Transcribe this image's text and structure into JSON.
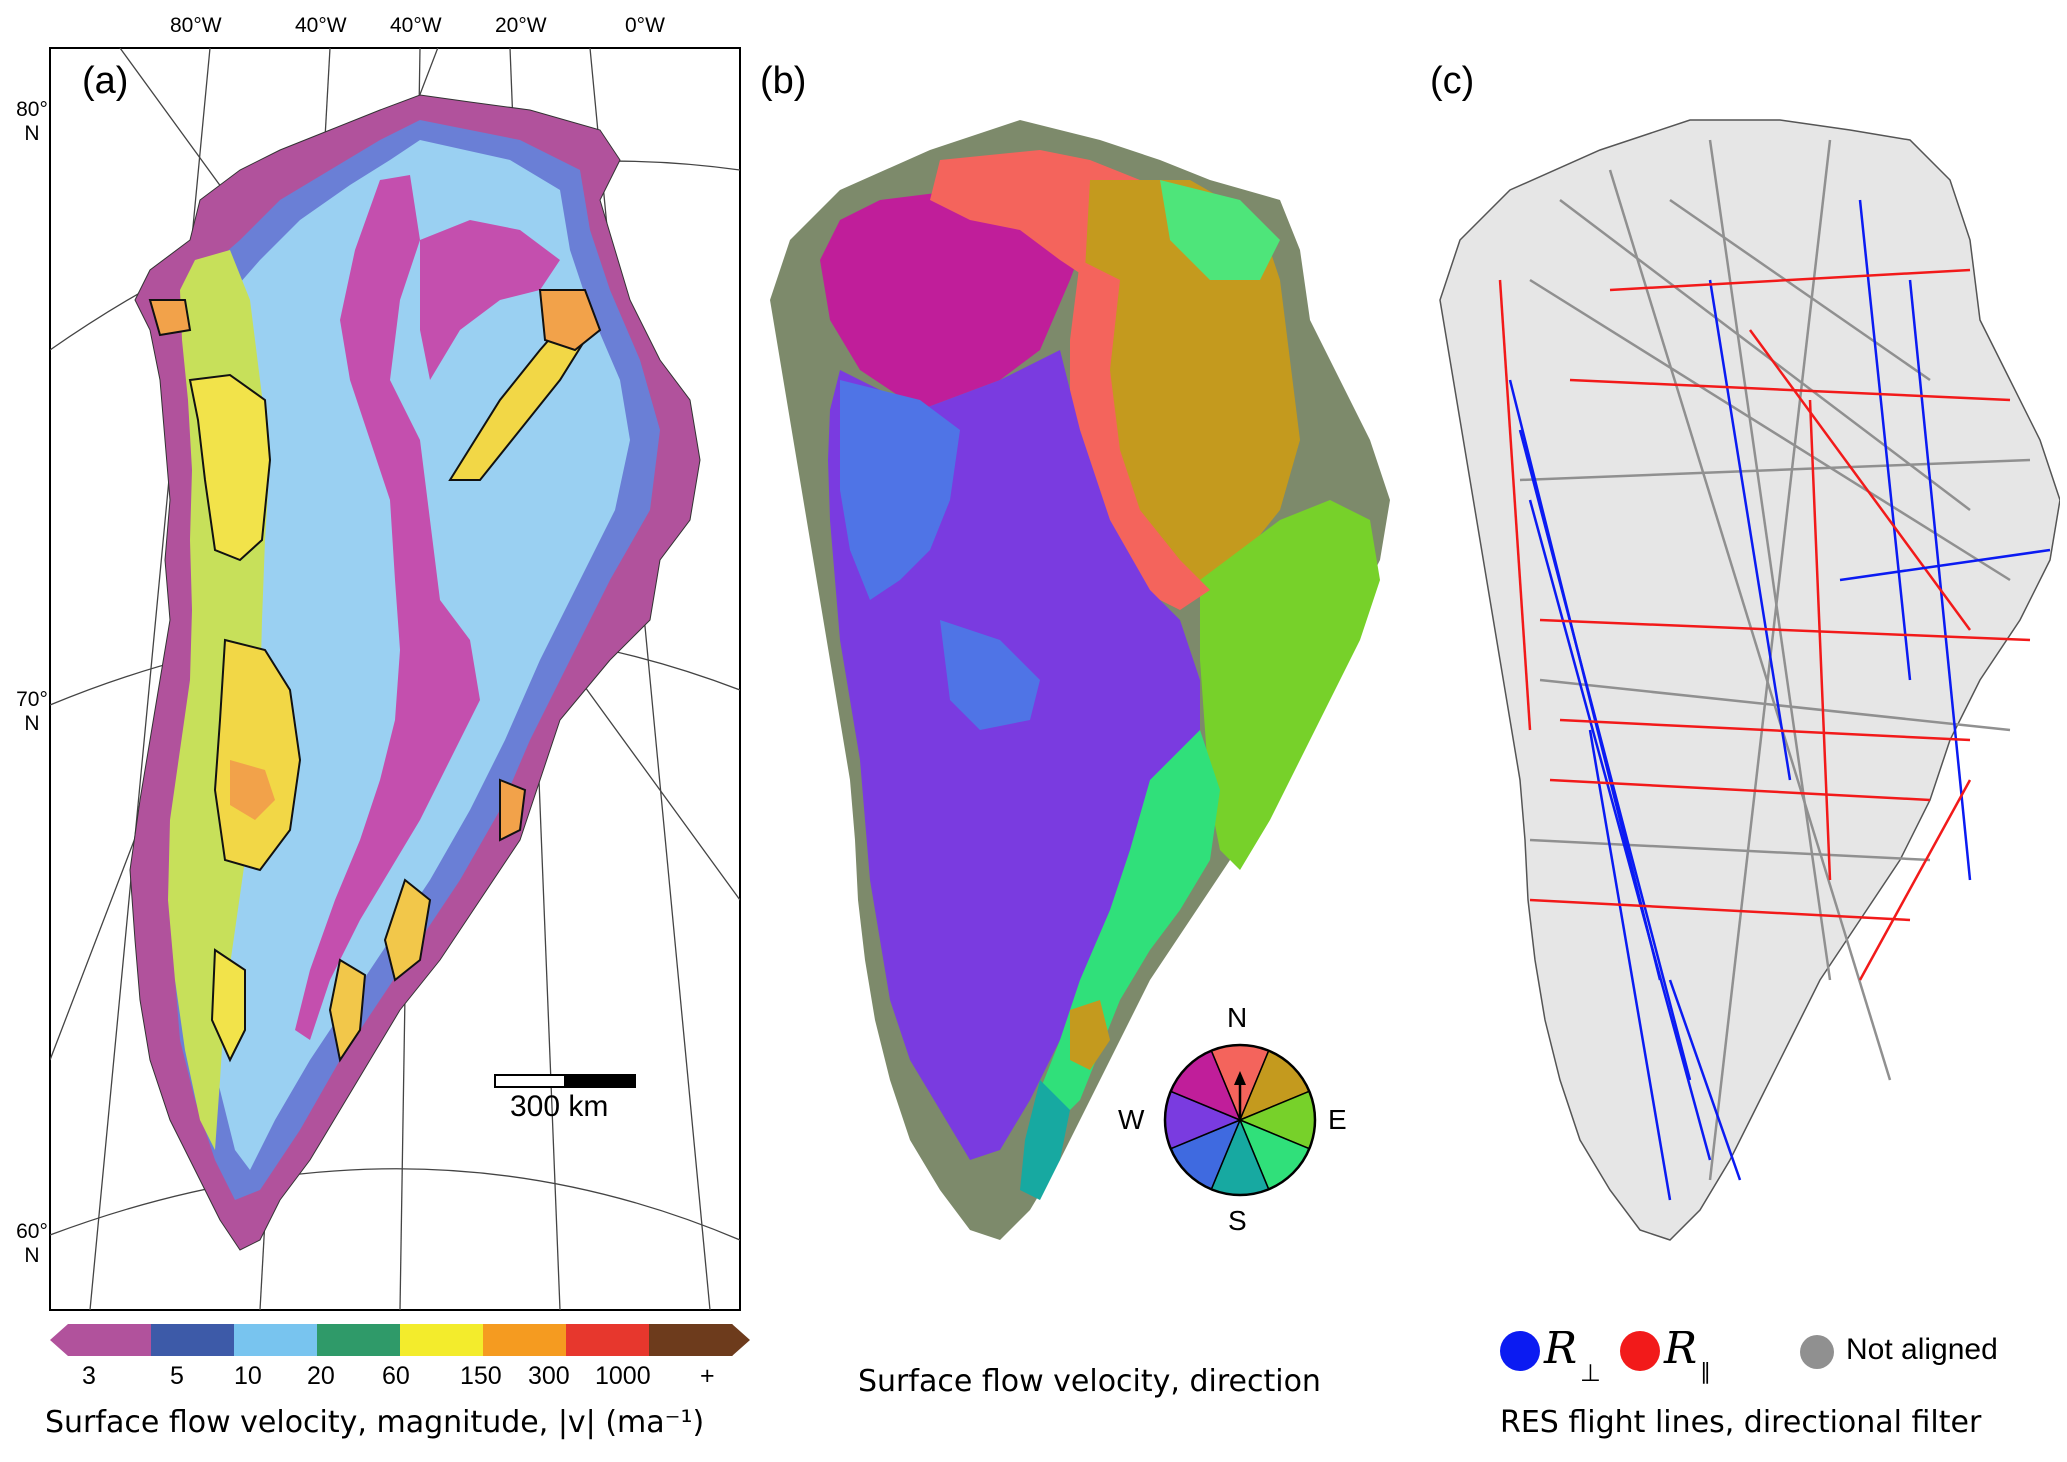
{
  "panel_a": {
    "label": "(a)",
    "lon_labels": [
      "80°W",
      "40°W",
      "40°W",
      "20°W",
      "0°W"
    ],
    "lat_labels": [
      {
        "deg": "80°",
        "hem": "N"
      },
      {
        "deg": "70°",
        "hem": "N"
      },
      {
        "deg": "60°",
        "hem": "N"
      }
    ],
    "scalebar": "300 km",
    "colorbar": {
      "ticks": [
        "3",
        "5",
        "10",
        "20",
        "60",
        "150",
        "300",
        "1000",
        "+"
      ],
      "colors": [
        "#b1529c",
        "#3d5aa8",
        "#78c4ef",
        "#2f9a69",
        "#f3ec2c",
        "#f59b20",
        "#e7372d",
        "#6d3b1c"
      ],
      "caption": "Surface flow velocity, magnitude, |v| (ma⁻¹)"
    }
  },
  "panel_b": {
    "label": "(b)",
    "compass": {
      "n": "N",
      "e": "E",
      "s": "S",
      "w": "W"
    },
    "compass_colors": [
      "#f4645c",
      "#c49a1e",
      "#77d12a",
      "#30e07a",
      "#17a9a1",
      "#3f6ae0",
      "#7a3be0",
      "#c01e9a"
    ],
    "caption": "Surface flow velocity, direction"
  },
  "panel_c": {
    "label": "(c)",
    "legend": [
      {
        "symbol": "R",
        "sub": "⊥",
        "color": "#0b1bf2"
      },
      {
        "symbol": "R",
        "sub": "∥",
        "color": "#f21a1a"
      },
      {
        "label": "Not aligned",
        "color": "#909090"
      }
    ],
    "caption": "RES flight lines, directional filter"
  }
}
